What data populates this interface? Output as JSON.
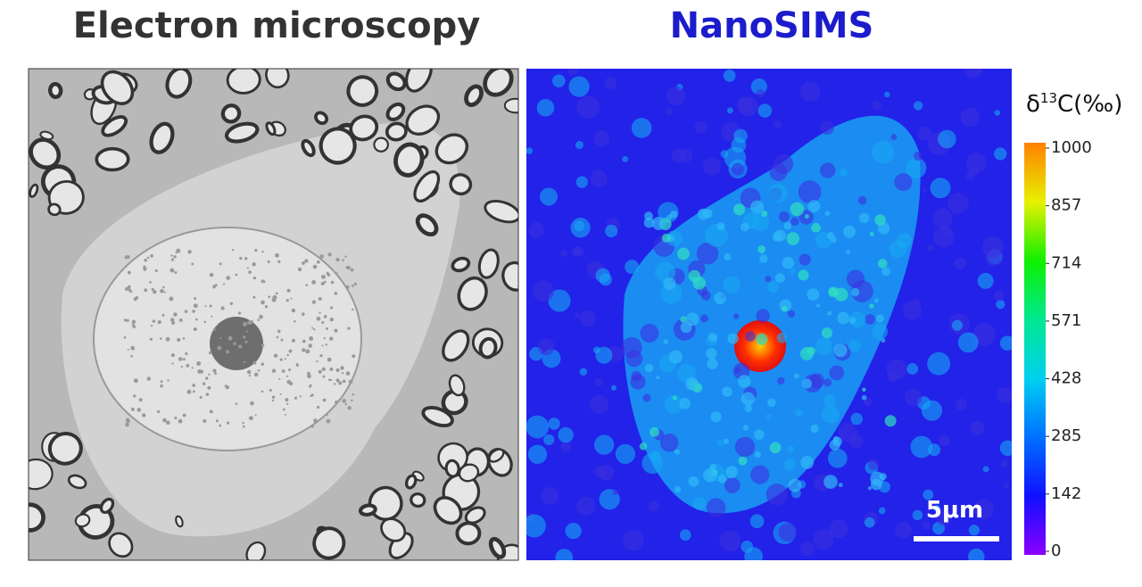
{
  "panels": {
    "left_title": "Electron microscopy",
    "right_title": "NanoSIMS"
  },
  "colorbar": {
    "label": {
      "symbol": "δ",
      "superscript": "13",
      "rest": "C(‰)"
    },
    "range": [
      0,
      1000
    ],
    "ticks": [
      0,
      142,
      285,
      428,
      571,
      714,
      857,
      1000
    ]
  },
  "scale_bar": {
    "label": "5μm"
  }
}
